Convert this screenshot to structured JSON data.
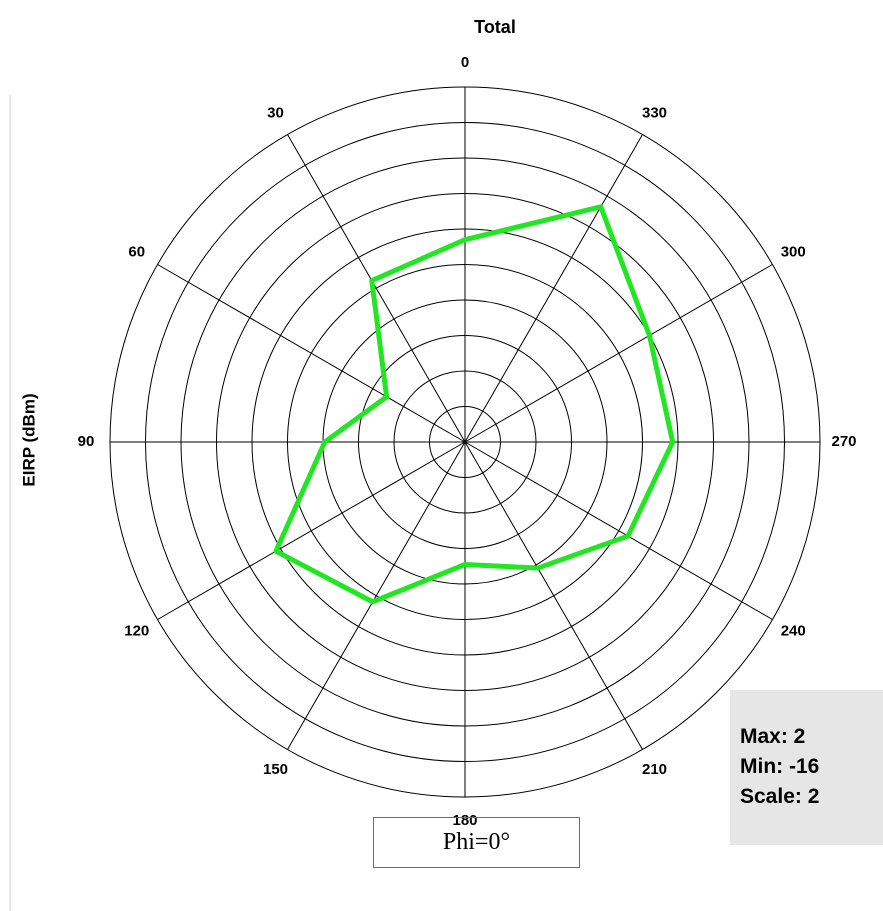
{
  "chart_data": {
    "type": "polar",
    "title": "Total",
    "ylabel": "EIRP (dBm)",
    "subtitle": "Phi=0°",
    "stats": [
      "Max: 2",
      "Min: -16",
      "Scale: 2"
    ],
    "rlim": [
      -18,
      2
    ],
    "rticks": [
      -16,
      -14,
      -12,
      -10,
      -8,
      -6,
      -4,
      -2,
      0,
      2
    ],
    "angle_ticks": [
      0,
      30,
      60,
      90,
      120,
      150,
      180,
      210,
      240,
      270,
      300,
      330
    ],
    "direction": "counterclockwise",
    "series": [
      {
        "name": "Total",
        "color": "#22e622",
        "angles": [
          0,
          30,
          60,
          90,
          120,
          150,
          180,
          210,
          240,
          270,
          300,
          330
        ],
        "values": [
          -6.6,
          -7.5,
          -12.9,
          -10.1,
          -5.7,
          -7.6,
          -11.1,
          -9.8,
          -7.4,
          -6.3,
          -6,
          -2.7
        ]
      }
    ]
  }
}
